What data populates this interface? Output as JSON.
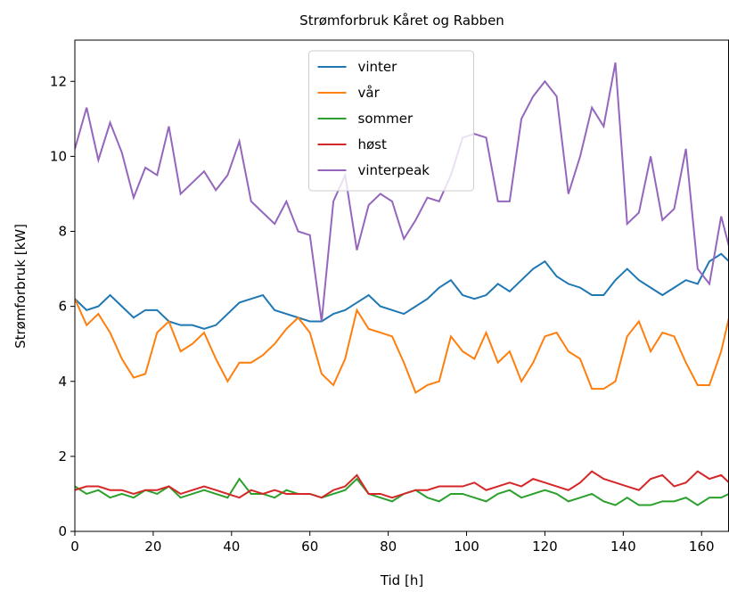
{
  "chart_data": {
    "type": "line",
    "title": "Strømforbruk Kåret og Rabben",
    "xlabel": "Tid [h]",
    "ylabel": "Strømforbruk [kW]",
    "x": [
      0,
      3,
      6,
      9,
      12,
      15,
      18,
      21,
      24,
      27,
      30,
      33,
      36,
      39,
      42,
      45,
      48,
      51,
      54,
      57,
      60,
      63,
      66,
      69,
      72,
      75,
      78,
      81,
      84,
      87,
      90,
      93,
      96,
      99,
      102,
      105,
      108,
      111,
      114,
      117,
      120,
      123,
      126,
      129,
      132,
      135,
      138,
      141,
      144,
      147,
      150,
      153,
      156,
      159,
      162,
      165,
      167
    ],
    "series": [
      {
        "name": "vinter",
        "color": "#1f77b4",
        "values": [
          6.2,
          5.9,
          6.0,
          6.3,
          6.0,
          5.7,
          5.9,
          5.9,
          5.6,
          5.5,
          5.5,
          5.4,
          5.5,
          5.8,
          6.1,
          6.2,
          6.3,
          5.9,
          5.8,
          5.7,
          5.6,
          5.6,
          5.8,
          5.9,
          6.1,
          6.3,
          6.0,
          5.9,
          5.8,
          6.0,
          6.2,
          6.5,
          6.7,
          6.3,
          6.2,
          6.3,
          6.6,
          6.4,
          6.7,
          7.0,
          7.2,
          6.8,
          6.6,
          6.5,
          6.3,
          6.3,
          6.7,
          7.0,
          6.7,
          6.5,
          6.3,
          6.5,
          6.7,
          6.6,
          7.2,
          7.4,
          7.2
        ]
      },
      {
        "name": "vår",
        "color": "#ff7f0e",
        "values": [
          6.2,
          5.5,
          5.8,
          5.3,
          4.6,
          4.1,
          4.2,
          5.3,
          5.6,
          4.8,
          5.0,
          5.3,
          4.6,
          4.0,
          4.5,
          4.5,
          4.7,
          5.0,
          5.4,
          5.7,
          5.3,
          4.2,
          3.9,
          4.6,
          5.9,
          5.4,
          5.3,
          5.2,
          4.5,
          3.7,
          3.9,
          4.0,
          5.2,
          4.8,
          4.6,
          5.3,
          4.5,
          4.8,
          4.0,
          4.5,
          5.2,
          5.3,
          4.8,
          4.6,
          3.8,
          3.8,
          4.0,
          5.2,
          5.6,
          4.8,
          5.3,
          5.2,
          4.5,
          3.9,
          3.9,
          4.8,
          5.7
        ]
      },
      {
        "name": "sommer",
        "color": "#2ca02c",
        "values": [
          1.2,
          1.0,
          1.1,
          0.9,
          1.0,
          0.9,
          1.1,
          1.0,
          1.2,
          0.9,
          1.0,
          1.1,
          1.0,
          0.9,
          1.4,
          1.0,
          1.0,
          0.9,
          1.1,
          1.0,
          1.0,
          0.9,
          1.0,
          1.1,
          1.4,
          1.0,
          0.9,
          0.8,
          1.0,
          1.1,
          0.9,
          0.8,
          1.0,
          1.0,
          0.9,
          0.8,
          1.0,
          1.1,
          0.9,
          1.0,
          1.1,
          1.0,
          0.8,
          0.9,
          1.0,
          0.8,
          0.7,
          0.9,
          0.7,
          0.7,
          0.8,
          0.8,
          0.9,
          0.7,
          0.9,
          0.9,
          1.0
        ]
      },
      {
        "name": "høst",
        "color": "#d62728",
        "values": [
          1.1,
          1.2,
          1.2,
          1.1,
          1.1,
          1.0,
          1.1,
          1.1,
          1.2,
          1.0,
          1.1,
          1.2,
          1.1,
          1.0,
          0.9,
          1.1,
          1.0,
          1.1,
          1.0,
          1.0,
          1.0,
          0.9,
          1.1,
          1.2,
          1.5,
          1.0,
          1.0,
          0.9,
          1.0,
          1.1,
          1.1,
          1.2,
          1.2,
          1.2,
          1.3,
          1.1,
          1.2,
          1.3,
          1.2,
          1.4,
          1.3,
          1.2,
          1.1,
          1.3,
          1.6,
          1.4,
          1.3,
          1.2,
          1.1,
          1.4,
          1.5,
          1.2,
          1.3,
          1.6,
          1.4,
          1.5,
          1.3
        ]
      },
      {
        "name": "vinterpeak",
        "color": "#9467bd",
        "values": [
          10.2,
          11.3,
          9.9,
          10.9,
          10.1,
          8.9,
          9.7,
          9.5,
          10.8,
          9.0,
          9.3,
          9.6,
          9.1,
          9.5,
          10.4,
          8.8,
          8.5,
          8.2,
          8.8,
          8.0,
          7.9,
          5.6,
          8.8,
          9.5,
          7.5,
          8.7,
          9.0,
          8.8,
          7.8,
          8.3,
          8.9,
          8.8,
          9.5,
          10.5,
          10.6,
          10.5,
          8.8,
          8.8,
          11.0,
          11.6,
          12.0,
          11.6,
          9.0,
          10.0,
          11.3,
          10.8,
          12.5,
          8.2,
          8.5,
          10.0,
          8.3,
          8.6,
          10.2,
          7.0,
          6.6,
          8.4,
          7.6
        ]
      }
    ],
    "xlim": [
      0,
      167
    ],
    "ylim": [
      0,
      13.1
    ],
    "xticks": [
      0,
      20,
      40,
      60,
      80,
      100,
      120,
      140,
      160
    ],
    "yticks": [
      0,
      2,
      4,
      6,
      8,
      10,
      12
    ],
    "legend": "upper center"
  }
}
